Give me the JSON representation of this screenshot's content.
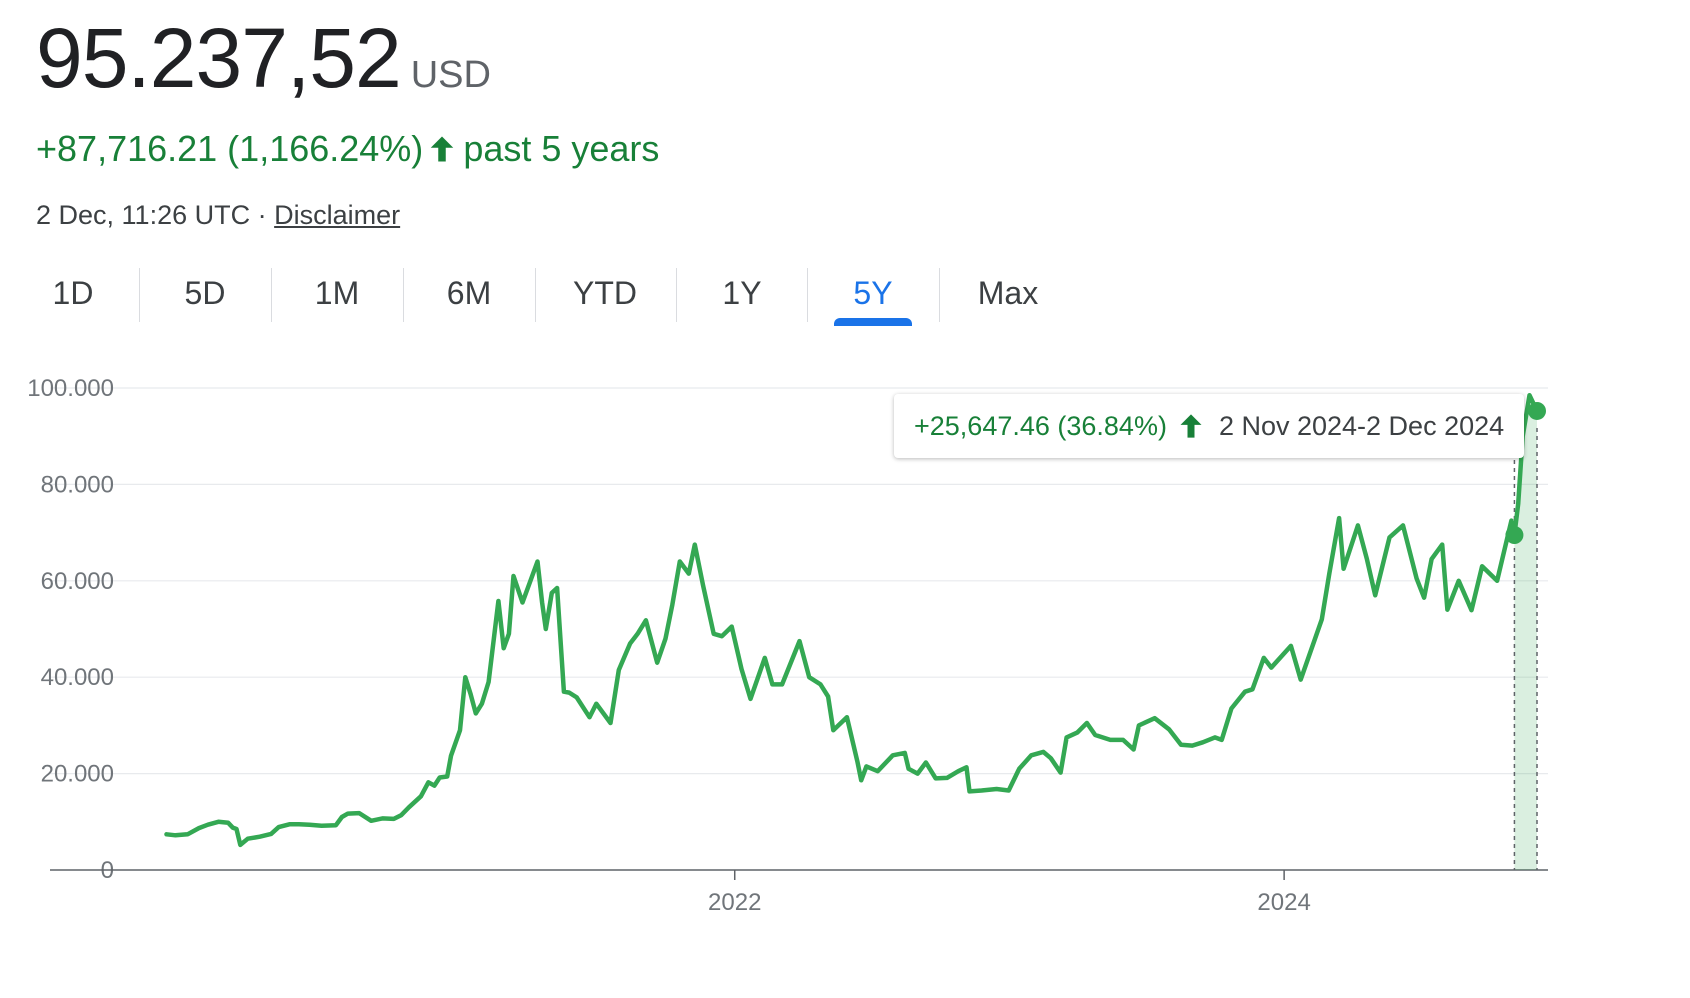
{
  "header": {
    "price": "95.237,52",
    "currency": "USD",
    "change": "+87,716.21 (1,166.24%)",
    "change_period": "past 5 years",
    "timestamp": "2 Dec, 11:26 UTC",
    "separator": "·",
    "disclaimer_label": "Disclaimer"
  },
  "tabs": [
    {
      "label": "1D",
      "active": false
    },
    {
      "label": "5D",
      "active": false
    },
    {
      "label": "1M",
      "active": false
    },
    {
      "label": "6M",
      "active": false
    },
    {
      "label": "YTD",
      "active": false
    },
    {
      "label": "1Y",
      "active": false
    },
    {
      "label": "5Y",
      "active": true
    },
    {
      "label": "Max",
      "active": false
    }
  ],
  "tooltip": {
    "change": "+25,647.46 (36.84%)",
    "range": "2 Nov 2024-2 Dec 2024"
  },
  "colors": {
    "line": "#34a853",
    "positive": "#188038",
    "active_tab": "#1a73e8",
    "grid": "#e8eaed"
  },
  "chart_data": {
    "type": "line",
    "ylim": [
      0,
      100000
    ],
    "yticks": [
      0,
      20000,
      40000,
      60000,
      80000,
      100000
    ],
    "ytick_labels": [
      "0",
      "20.000",
      "40.000",
      "60.000",
      "80.000",
      "100.000"
    ],
    "xlim": [
      "2019-12-02",
      "2024-12-02"
    ],
    "xticks": [
      "2022-01-01",
      "2024-01-01"
    ],
    "xtick_labels": [
      "2022",
      "2024"
    ],
    "grid": true,
    "highlight_range": [
      "2024-11-02",
      "2024-12-02"
    ],
    "series": [
      {
        "points": [
          [
            "2019-12-08",
            7400
          ],
          [
            "2019-12-20",
            7200
          ],
          [
            "2020-01-05",
            7400
          ],
          [
            "2020-01-20",
            8700
          ],
          [
            "2020-02-01",
            9400
          ],
          [
            "2020-02-15",
            10000
          ],
          [
            "2020-02-28",
            9800
          ],
          [
            "2020-03-05",
            8800
          ],
          [
            "2020-03-10",
            8500
          ],
          [
            "2020-03-15",
            5200
          ],
          [
            "2020-03-25",
            6500
          ],
          [
            "2020-04-10",
            6900
          ],
          [
            "2020-04-25",
            7500
          ],
          [
            "2020-05-05",
            8900
          ],
          [
            "2020-05-20",
            9500
          ],
          [
            "2020-06-01",
            9500
          ],
          [
            "2020-06-15",
            9400
          ],
          [
            "2020-07-01",
            9200
          ],
          [
            "2020-07-20",
            9300
          ],
          [
            "2020-07-28",
            11000
          ],
          [
            "2020-08-05",
            11700
          ],
          [
            "2020-08-20",
            11800
          ],
          [
            "2020-09-05",
            10200
          ],
          [
            "2020-09-20",
            10700
          ],
          [
            "2020-10-05",
            10600
          ],
          [
            "2020-10-15",
            11400
          ],
          [
            "2020-10-25",
            13000
          ],
          [
            "2020-11-10",
            15300
          ],
          [
            "2020-11-20",
            18200
          ],
          [
            "2020-11-28",
            17500
          ],
          [
            "2020-12-05",
            19200
          ],
          [
            "2020-12-15",
            19400
          ],
          [
            "2020-12-20",
            23700
          ],
          [
            "2021-01-01",
            29000
          ],
          [
            "2021-01-08",
            40000
          ],
          [
            "2021-01-15",
            36500
          ],
          [
            "2021-01-22",
            32500
          ],
          [
            "2021-01-30",
            34500
          ],
          [
            "2021-02-08",
            39000
          ],
          [
            "2021-02-21",
            55800
          ],
          [
            "2021-02-28",
            46000
          ],
          [
            "2021-03-07",
            49000
          ],
          [
            "2021-03-13",
            61000
          ],
          [
            "2021-03-25",
            55500
          ],
          [
            "2021-04-01",
            58500
          ],
          [
            "2021-04-14",
            64000
          ],
          [
            "2021-04-20",
            55500
          ],
          [
            "2021-04-25",
            50000
          ],
          [
            "2021-05-03",
            57500
          ],
          [
            "2021-05-10",
            58500
          ],
          [
            "2021-05-19",
            37000
          ],
          [
            "2021-05-26",
            36800
          ],
          [
            "2021-06-05",
            35800
          ],
          [
            "2021-06-22",
            31700
          ],
          [
            "2021-07-01",
            34500
          ],
          [
            "2021-07-20",
            30500
          ],
          [
            "2021-07-31",
            41500
          ],
          [
            "2021-08-15",
            47000
          ],
          [
            "2021-08-25",
            49000
          ],
          [
            "2021-09-05",
            51800
          ],
          [
            "2021-09-20",
            43000
          ],
          [
            "2021-10-01",
            48000
          ],
          [
            "2021-10-10",
            55000
          ],
          [
            "2021-10-20",
            64000
          ],
          [
            "2021-11-01",
            61500
          ],
          [
            "2021-11-09",
            67500
          ],
          [
            "2021-11-20",
            59000
          ],
          [
            "2021-12-04",
            49000
          ],
          [
            "2021-12-15",
            48500
          ],
          [
            "2021-12-28",
            50500
          ],
          [
            "2022-01-10",
            41700
          ],
          [
            "2022-01-22",
            35500
          ],
          [
            "2022-02-10",
            44000
          ],
          [
            "2022-02-20",
            38500
          ],
          [
            "2022-03-05",
            38500
          ],
          [
            "2022-03-28",
            47500
          ],
          [
            "2022-04-10",
            40000
          ],
          [
            "2022-04-25",
            38500
          ],
          [
            "2022-05-05",
            36000
          ],
          [
            "2022-05-12",
            29000
          ],
          [
            "2022-05-30",
            31700
          ],
          [
            "2022-06-13",
            22500
          ],
          [
            "2022-06-18",
            18600
          ],
          [
            "2022-06-25",
            21500
          ],
          [
            "2022-07-10",
            20500
          ],
          [
            "2022-07-30",
            23800
          ],
          [
            "2022-08-15",
            24300
          ],
          [
            "2022-08-20",
            21000
          ],
          [
            "2022-09-01",
            20000
          ],
          [
            "2022-09-12",
            22300
          ],
          [
            "2022-09-25",
            19000
          ],
          [
            "2022-10-10",
            19100
          ],
          [
            "2022-10-25",
            20500
          ],
          [
            "2022-11-05",
            21300
          ],
          [
            "2022-11-09",
            16300
          ],
          [
            "2022-11-25",
            16500
          ],
          [
            "2022-12-15",
            16800
          ],
          [
            "2022-12-31",
            16500
          ],
          [
            "2023-01-14",
            21000
          ],
          [
            "2023-01-30",
            23800
          ],
          [
            "2023-02-15",
            24500
          ],
          [
            "2023-02-25",
            23200
          ],
          [
            "2023-03-10",
            20200
          ],
          [
            "2023-03-18",
            27500
          ],
          [
            "2023-04-01",
            28500
          ],
          [
            "2023-04-14",
            30500
          ],
          [
            "2023-04-25",
            28000
          ],
          [
            "2023-05-15",
            27000
          ],
          [
            "2023-06-01",
            27000
          ],
          [
            "2023-06-15",
            25000
          ],
          [
            "2023-06-22",
            30000
          ],
          [
            "2023-07-13",
            31500
          ],
          [
            "2023-08-01",
            29200
          ],
          [
            "2023-08-17",
            26000
          ],
          [
            "2023-09-01",
            25800
          ],
          [
            "2023-09-15",
            26500
          ],
          [
            "2023-10-01",
            27500
          ],
          [
            "2023-10-10",
            27000
          ],
          [
            "2023-10-23",
            33500
          ],
          [
            "2023-11-10",
            37000
          ],
          [
            "2023-11-20",
            37500
          ],
          [
            "2023-12-05",
            44000
          ],
          [
            "2023-12-15",
            42000
          ],
          [
            "2024-01-10",
            46500
          ],
          [
            "2024-01-23",
            39500
          ],
          [
            "2024-02-10",
            47500
          ],
          [
            "2024-02-20",
            52000
          ],
          [
            "2024-03-01",
            61500
          ],
          [
            "2024-03-14",
            73000
          ],
          [
            "2024-03-20",
            62500
          ],
          [
            "2024-04-08",
            71500
          ],
          [
            "2024-04-20",
            64500
          ],
          [
            "2024-05-01",
            57000
          ],
          [
            "2024-05-20",
            69000
          ],
          [
            "2024-06-07",
            71500
          ],
          [
            "2024-06-25",
            60500
          ],
          [
            "2024-07-05",
            56500
          ],
          [
            "2024-07-15",
            64500
          ],
          [
            "2024-07-29",
            67500
          ],
          [
            "2024-08-05",
            54000
          ],
          [
            "2024-08-20",
            60000
          ],
          [
            "2024-09-06",
            53900
          ],
          [
            "2024-09-20",
            63000
          ],
          [
            "2024-10-10",
            60000
          ],
          [
            "2024-10-29",
            72500
          ],
          [
            "2024-11-02",
            69500
          ],
          [
            "2024-11-07",
            76000
          ],
          [
            "2024-11-13",
            90000
          ],
          [
            "2024-11-22",
            98500
          ],
          [
            "2024-12-02",
            95237
          ]
        ]
      }
    ],
    "markers": [
      [
        "2024-11-02",
        69500
      ],
      [
        "2024-12-02",
        95237
      ]
    ]
  }
}
